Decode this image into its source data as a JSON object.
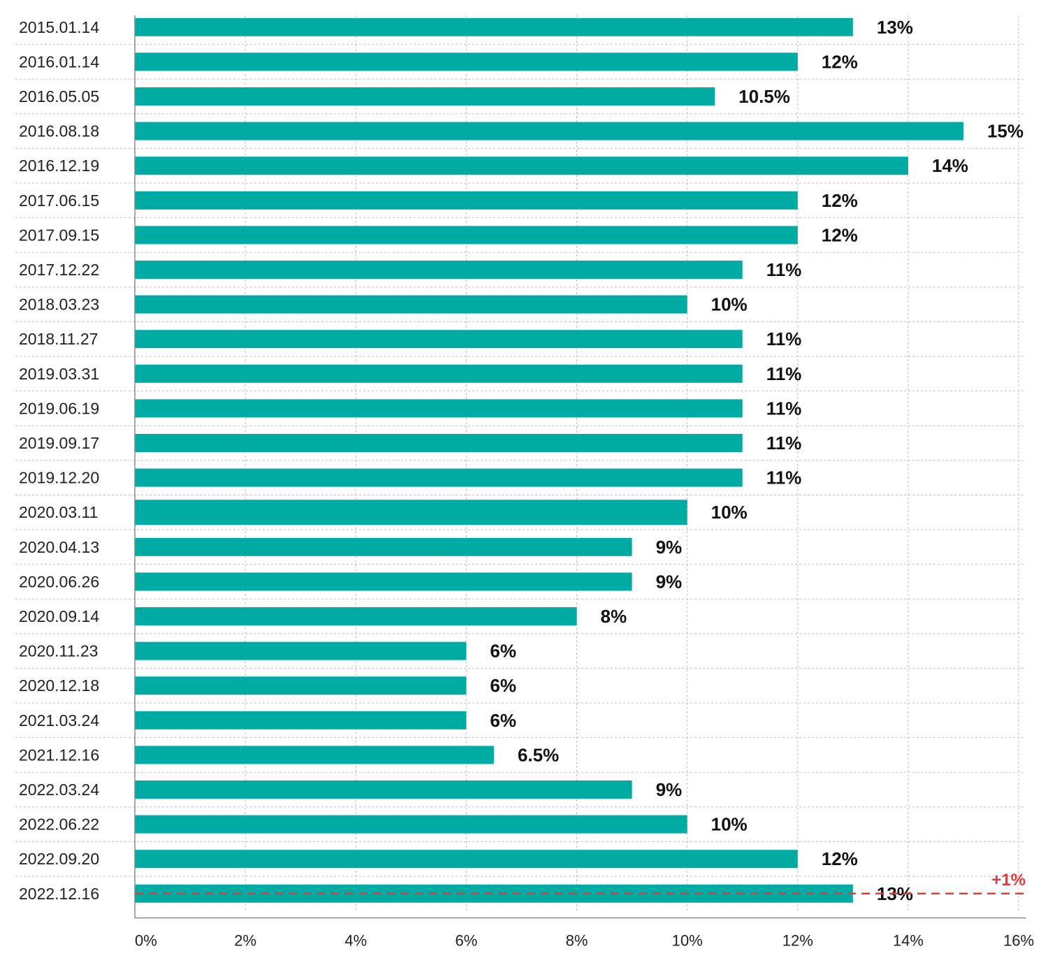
{
  "chart_data": {
    "type": "bar",
    "orientation": "horizontal",
    "categories": [
      "2015.01.14",
      "2016.01.14",
      "2016.05.05",
      "2016.08.18",
      "2016.12.19",
      "2017.06.15",
      "2017.09.15",
      "2017.12.22",
      "2018.03.23",
      "2018.11.27",
      "2019.03.31",
      "2019.06.19",
      "2019.09.17",
      "2019.12.20",
      "2020.03.11",
      "2020.04.13",
      "2020.06.26",
      "2020.09.14",
      "2020.11.23",
      "2020.12.18",
      "2021.03.24",
      "2021.12.16",
      "2022.03.24",
      "2022.06.22",
      "2022.09.20",
      "2022.12.16"
    ],
    "values": [
      13,
      12,
      10.5,
      15,
      14,
      12,
      12,
      11,
      10,
      11,
      11,
      11,
      11,
      11,
      10,
      9,
      9,
      8,
      6,
      6,
      6,
      6.5,
      9,
      10,
      12,
      13
    ],
    "value_labels": [
      "13%",
      "12%",
      "10.5%",
      "15%",
      "14%",
      "12%",
      "12%",
      "11%",
      "10%",
      "11%",
      "11%",
      "11%",
      "11%",
      "11%",
      "10%",
      "9%",
      "9%",
      "8%",
      "6%",
      "6%",
      "6%",
      "6.5%",
      "9%",
      "10%",
      "12%",
      "13%"
    ],
    "xlim": [
      0,
      16
    ],
    "xticks": [
      0,
      2,
      4,
      6,
      8,
      10,
      12,
      14,
      16
    ],
    "xtick_labels": [
      "0%",
      "2%",
      "4%",
      "6%",
      "8%",
      "10%",
      "12%",
      "14%",
      "16%"
    ],
    "grid": true,
    "bar_color": "#00ABA4",
    "annotation": {
      "text": "+1%",
      "color": "#E53935",
      "style": "dashed-line",
      "category": "2022.12.16"
    }
  }
}
